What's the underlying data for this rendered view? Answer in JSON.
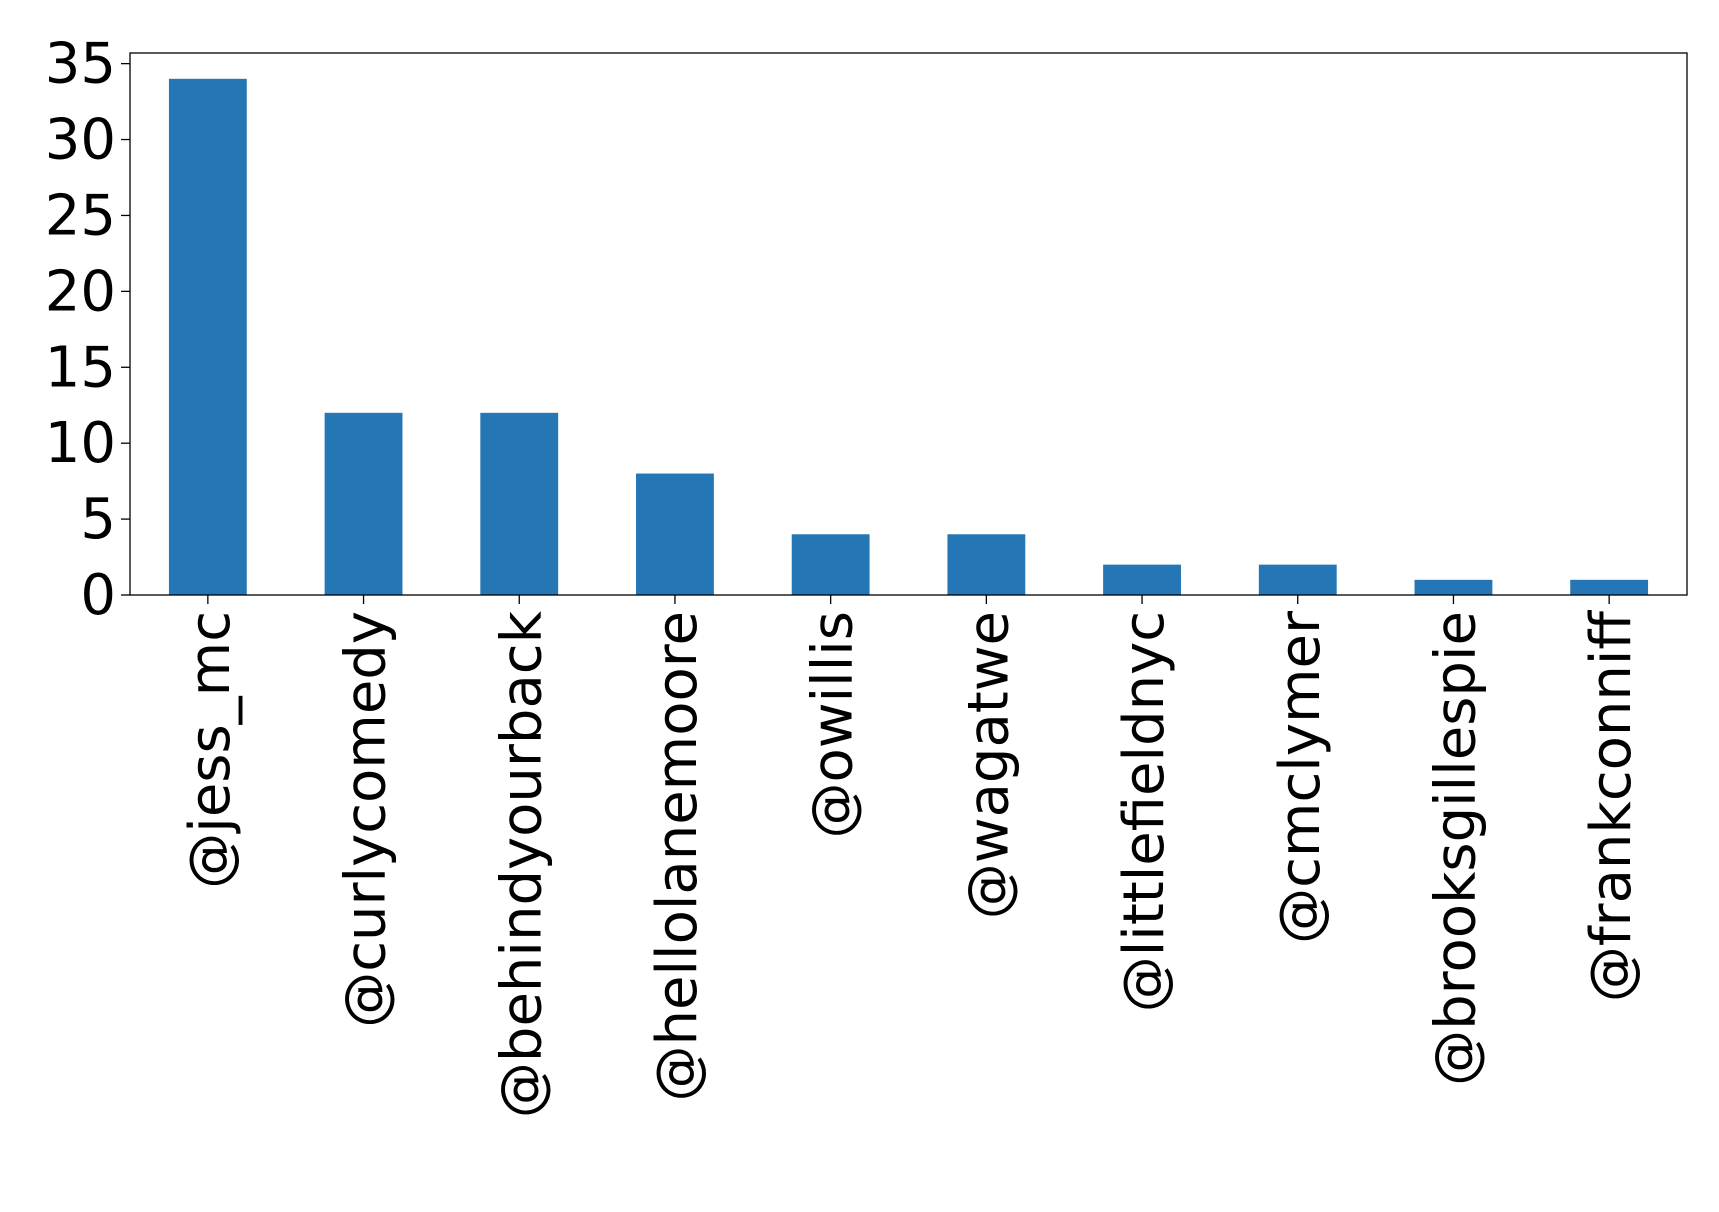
{
  "chart_data": {
    "type": "bar",
    "categories": [
      "@jess_mc",
      "@curlycomedy",
      "@behindyourback",
      "@hellolanemoore",
      "@owillis",
      "@wagatwe",
      "@littlefieldnyc",
      "@cmclymer",
      "@brooksgillespie",
      "@frankconniff"
    ],
    "values": [
      34,
      12,
      12,
      8,
      4,
      4,
      2,
      2,
      1,
      1
    ],
    "ylim": [
      0,
      35.7
    ],
    "yticks": [
      0,
      5,
      10,
      15,
      20,
      25,
      30,
      35
    ],
    "title": "",
    "xlabel": "",
    "ylabel": "",
    "bar_color": "#2477b4",
    "grid": false,
    "legend": "none"
  }
}
